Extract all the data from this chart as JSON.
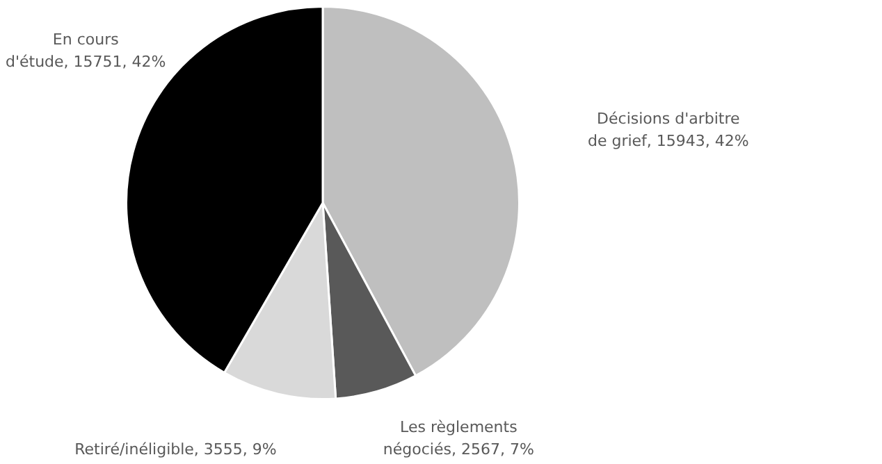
{
  "chart_data": {
    "type": "pie",
    "categories": [
      "Décisions d'arbitre de grief",
      "Les règlements négociés",
      "Retiré/inéligible",
      "En cours d'étude"
    ],
    "values": [
      15943,
      2567,
      3555,
      15751
    ],
    "colors": [
      "#bfbfbf",
      "#595959",
      "#d9d9d9",
      "#000000"
    ],
    "value_labels": [
      "15943, 42%",
      "2567, 7%",
      "3555, 9%",
      "15751, 42%"
    ],
    "legend": false
  }
}
